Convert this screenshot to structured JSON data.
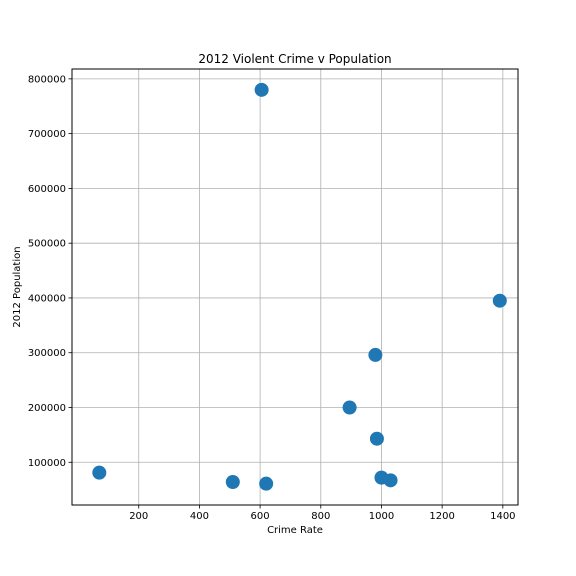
{
  "chart_data": {
    "type": "scatter",
    "title": "2012 Violent Crime v Population",
    "xlabel": "Crime Rate",
    "ylabel": "2012 Population",
    "xlim": [
      -20,
      1450
    ],
    "ylim": [
      22000,
      818000
    ],
    "xticks": [
      200,
      400,
      600,
      800,
      1000,
      1200,
      1400
    ],
    "yticks": [
      100000,
      200000,
      300000,
      400000,
      500000,
      600000,
      700000,
      800000
    ],
    "grid": true,
    "marker_color": "#1f77b4",
    "points": [
      {
        "x": 605,
        "y": 780000
      },
      {
        "x": 1390,
        "y": 395000
      },
      {
        "x": 980,
        "y": 296000
      },
      {
        "x": 895,
        "y": 200000
      },
      {
        "x": 985,
        "y": 143000
      },
      {
        "x": 70,
        "y": 81000
      },
      {
        "x": 1000,
        "y": 72000
      },
      {
        "x": 1030,
        "y": 67000
      },
      {
        "x": 510,
        "y": 64000
      },
      {
        "x": 620,
        "y": 61000
      }
    ]
  }
}
